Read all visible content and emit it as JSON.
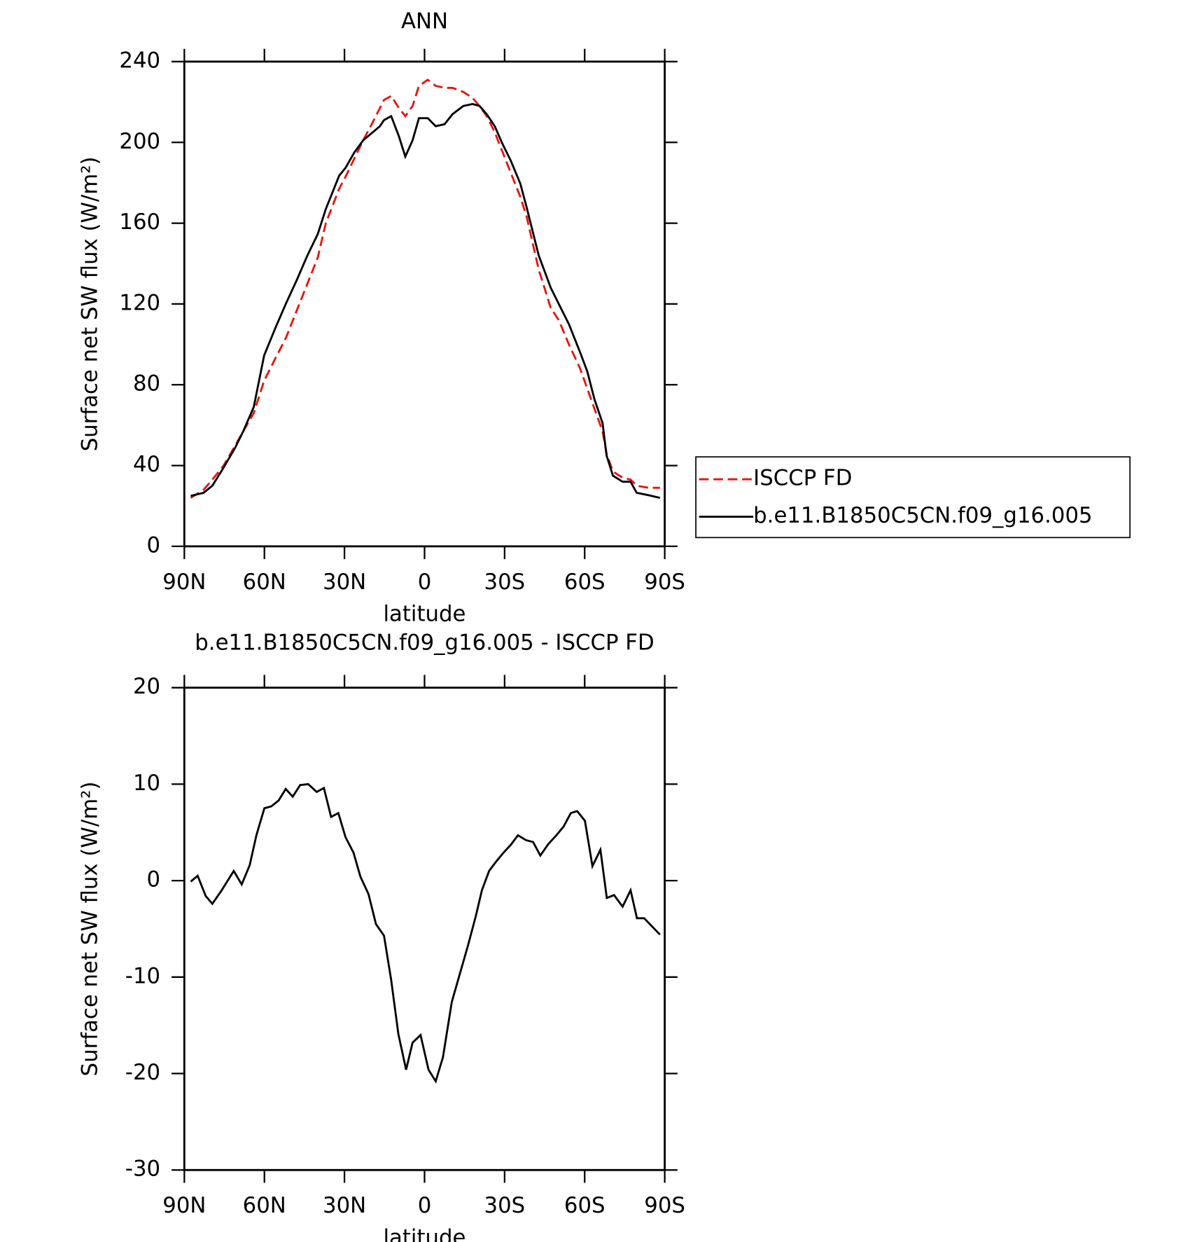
{
  "chart_data": [
    {
      "type": "line",
      "title": "ANN",
      "xlabel": "latitude",
      "ylabel": "Surface net SW flux (W/m²)",
      "xlim": [
        90,
        -90
      ],
      "ylim": [
        0,
        240
      ],
      "xticks": [
        {
          "value": 90,
          "label": "90N"
        },
        {
          "value": 60,
          "label": "60N"
        },
        {
          "value": 30,
          "label": "30N"
        },
        0,
        {
          "value": -30,
          "label": "30S"
        },
        {
          "value": -60,
          "label": "60S"
        },
        {
          "value": -90,
          "label": "90S"
        }
      ],
      "yticks": [
        0,
        40,
        80,
        120,
        160,
        200,
        240
      ],
      "x": [
        87.6,
        82.8,
        79.5,
        75.3,
        70.9,
        67.9,
        64,
        60.1,
        55.9,
        52,
        47.8,
        43.9,
        40,
        37,
        32,
        29.6,
        26.3,
        23,
        19.4,
        16.7,
        15.2,
        12.5,
        9.6,
        7.2,
        4.5,
        2.1,
        -1.2,
        -4.2,
        -7.5,
        -10.5,
        -14.5,
        -18,
        -20.6,
        -23.3,
        -26.3,
        -29.3,
        -32.3,
        -35.9,
        -38.3,
        -42.8,
        -47.3,
        -50.3,
        -54.1,
        -58.3,
        -61,
        -63.7,
        -66.7,
        -68.2,
        -70.6,
        -74.2,
        -77.2,
        -79.5,
        -84,
        -88.2
      ],
      "series": [
        {
          "name": "ISCCP FD",
          "color": "#e8140f",
          "style": "dashed",
          "values": [
            24,
            28,
            33,
            40,
            50,
            57,
            66,
            82,
            93,
            103,
            117,
            130,
            143,
            160,
            177,
            183,
            192,
            201,
            210,
            217,
            221,
            223,
            217,
            213,
            218,
            228,
            231,
            228,
            227,
            227,
            225,
            222,
            218,
            213,
            205,
            195,
            185,
            173,
            163,
            137,
            118,
            112,
            100,
            88,
            78,
            68,
            57,
            46,
            37,
            34,
            33,
            30,
            29,
            29
          ]
        },
        {
          "name": "b.e11.B1850C5CN.f09_g16.005",
          "color": "#000000",
          "style": "solid",
          "values": [
            25,
            26.5,
            30,
            39,
            49,
            57,
            69,
            94.5,
            108,
            120,
            132,
            144,
            154.6,
            167,
            183.5,
            187.4,
            195,
            201,
            205,
            208,
            211,
            213,
            203,
            193,
            201,
            212,
            212,
            208,
            209,
            214,
            218,
            219,
            218,
            214,
            208,
            199,
            191,
            179.5,
            167.6,
            144,
            128,
            120,
            110,
            96,
            86.5,
            72.7,
            61,
            45,
            35,
            32,
            32,
            26.5,
            25.3,
            24
          ]
        }
      ]
    },
    {
      "type": "line",
      "title": "b.e11.B1850C5CN.f09_g16.005 - ISCCP FD",
      "xlabel": "latitude",
      "ylabel": "Surface net SW flux (W/m²)",
      "xlim": [
        90,
        -90
      ],
      "ylim": [
        -30,
        20
      ],
      "xticks": [
        {
          "value": 90,
          "label": "90N"
        },
        {
          "value": 60,
          "label": "60N"
        },
        {
          "value": 30,
          "label": "30N"
        },
        0,
        {
          "value": -30,
          "label": "30S"
        },
        {
          "value": -60,
          "label": "60S"
        },
        {
          "value": -90,
          "label": "90S"
        }
      ],
      "yticks": [
        -30,
        -20,
        -10,
        0,
        10,
        20
      ],
      "x": [
        87.6,
        85,
        82,
        79.5,
        76,
        71.5,
        68.5,
        65.5,
        63,
        60,
        57.4,
        54.7,
        52,
        49.4,
        46.6,
        43.6,
        40.4,
        37.7,
        35,
        32.3,
        29.6,
        26.6,
        24,
        21,
        18.2,
        15.2,
        12.5,
        9.8,
        6.9,
        4.5,
        1.5,
        -1.5,
        -4.2,
        -6.9,
        -10.2,
        -13.2,
        -16.2,
        -19.2,
        -21.5,
        -24.2,
        -26.9,
        -29.6,
        -32.3,
        -35,
        -38,
        -40.7,
        -43.4,
        -46.4,
        -49.1,
        -52.1,
        -54.8,
        -57.2,
        -60.1,
        -62.9,
        -65.9,
        -68.3,
        -71,
        -74.2,
        -77.2,
        -79.6,
        -82.3,
        -88.2
      ],
      "series": [
        {
          "color": "#000000",
          "style": "solid",
          "values": [
            -0.1,
            0.5,
            -1.6,
            -2.4,
            -1,
            1,
            -0.4,
            1.6,
            4.7,
            7.5,
            7.7,
            8.3,
            9.5,
            8.7,
            9.9,
            10,
            9.2,
            9.6,
            6.6,
            7,
            4.5,
            2.9,
            0.4,
            -1.4,
            -4.5,
            -5.7,
            -10.3,
            -15.9,
            -19.6,
            -16.8,
            -16,
            -19.6,
            -20.8,
            -18.3,
            -12.6,
            -9.7,
            -6.8,
            -3.7,
            -1,
            1,
            2,
            2.9,
            3.7,
            4.7,
            4.2,
            4,
            2.6,
            3.8,
            4.6,
            5.6,
            7,
            7.2,
            6.2,
            1.5,
            3.2,
            -1.8,
            -1.5,
            -2.7,
            -1,
            -3.9,
            -3.9,
            -5.6
          ]
        }
      ]
    }
  ]
}
